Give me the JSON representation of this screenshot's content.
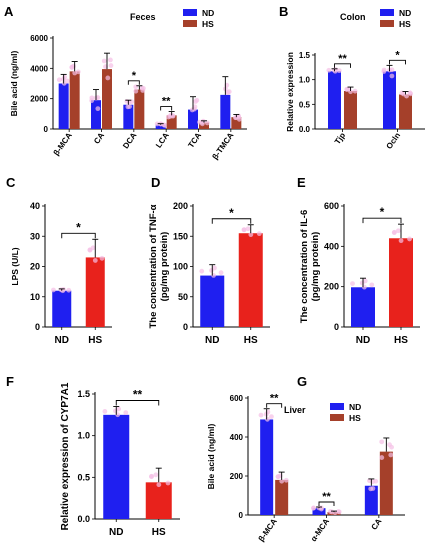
{
  "colors": {
    "ND": "#1f1ff0",
    "HS": "#a5402a",
    "HS_bright": "#e8221c",
    "jitter": "#f5bfe6"
  },
  "chart_data": [
    {
      "panel": "A",
      "type": "bar",
      "title": "Feces",
      "xlabel": "",
      "ylabel": "Bile acid (ng/ml)",
      "ylim": [
        0,
        6000
      ],
      "yticks": [
        0,
        2000,
        4000,
        6000
      ],
      "categories": [
        "β-MCA",
        "CA",
        "DCA",
        "LCA",
        "TCA",
        "β-TMCA"
      ],
      "series": [
        {
          "name": "ND",
          "values": [
            3000,
            1900,
            1600,
            280,
            1280,
            2250
          ],
          "err": [
            600,
            700,
            300,
            70,
            850,
            1200
          ]
        },
        {
          "name": "HS",
          "values": [
            3800,
            3950,
            2600,
            900,
            420,
            780
          ],
          "err": [
            650,
            1050,
            250,
            250,
            120,
            180
          ]
        }
      ],
      "sig": [
        {
          "cat": 2,
          "label": "*"
        },
        {
          "cat": 3,
          "label": "**"
        }
      ],
      "legend": [
        "ND",
        "HS"
      ]
    },
    {
      "panel": "B",
      "type": "bar",
      "title": "Colon",
      "xlabel": "",
      "ylabel": "Relative expression",
      "ylim": [
        0,
        1.5
      ],
      "yticks": [
        0.0,
        0.5,
        1.0,
        1.5
      ],
      "categories": [
        "Tjp",
        "Ocln"
      ],
      "series": [
        {
          "name": "ND",
          "values": [
            1.17,
            1.17
          ],
          "err": [
            0.05,
            0.12
          ]
        },
        {
          "name": "HS",
          "values": [
            0.77,
            0.7
          ],
          "err": [
            0.08,
            0.06
          ]
        }
      ],
      "sig": [
        {
          "cat": 0,
          "label": "**"
        },
        {
          "cat": 1,
          "label": "*"
        }
      ],
      "legend": [
        "ND",
        "HS"
      ]
    },
    {
      "panel": "C",
      "type": "bar",
      "xlabel": "",
      "ylabel": "LPS (U/L)",
      "ylim": [
        0,
        40
      ],
      "yticks": [
        0,
        10,
        20,
        30,
        40
      ],
      "categories": [
        "ND",
        "HS"
      ],
      "values": [
        12,
        23
      ],
      "err": [
        0.6,
        6
      ],
      "sig": [
        {
          "label": "*"
        }
      ]
    },
    {
      "panel": "D",
      "type": "bar",
      "xlabel": "",
      "ylabel": "The concentration of TNF-α (pg/mg protein)",
      "ylim": [
        0,
        200
      ],
      "yticks": [
        0,
        50,
        100,
        150,
        200
      ],
      "categories": [
        "ND",
        "HS"
      ],
      "values": [
        85,
        155
      ],
      "err": [
        18,
        14
      ],
      "sig": [
        {
          "label": "*"
        }
      ]
    },
    {
      "panel": "E",
      "type": "bar",
      "xlabel": "",
      "ylabel": "The concentration of IL-6 (pg/mg protein)",
      "ylim": [
        0,
        600
      ],
      "yticks": [
        0,
        200,
        400,
        600
      ],
      "categories": [
        "ND",
        "HS"
      ],
      "values": [
        197,
        440
      ],
      "err": [
        45,
        70
      ],
      "sig": [
        {
          "label": "*"
        }
      ]
    },
    {
      "panel": "F",
      "type": "bar",
      "xlabel": "",
      "ylabel": "Relative expression of CYP7A1",
      "ylim": [
        0,
        1.5
      ],
      "yticks": [
        0.0,
        0.5,
        1.0,
        1.5
      ],
      "categories": [
        "ND",
        "HS"
      ],
      "values": [
        1.25,
        0.44
      ],
      "err": [
        0.1,
        0.17
      ],
      "sig": [
        {
          "label": "**"
        }
      ]
    },
    {
      "panel": "G",
      "type": "bar",
      "title": "Liver",
      "xlabel": "",
      "ylabel": "Bile acid (ng/ml)",
      "ylim": [
        0,
        600
      ],
      "yticks": [
        0,
        200,
        400,
        600
      ],
      "categories": [
        "β-MCA",
        "α-MCA",
        "CA"
      ],
      "series": [
        {
          "name": "ND",
          "values": [
            490,
            35,
            150
          ],
          "err": [
            55,
            6,
            35
          ]
        },
        {
          "name": "HS",
          "values": [
            180,
            15,
            325
          ],
          "err": [
            40,
            5,
            70
          ]
        }
      ],
      "sig": [
        {
          "cat": 0,
          "label": "**"
        },
        {
          "cat": 1,
          "label": "**"
        }
      ],
      "legend": [
        "ND",
        "HS"
      ]
    }
  ]
}
